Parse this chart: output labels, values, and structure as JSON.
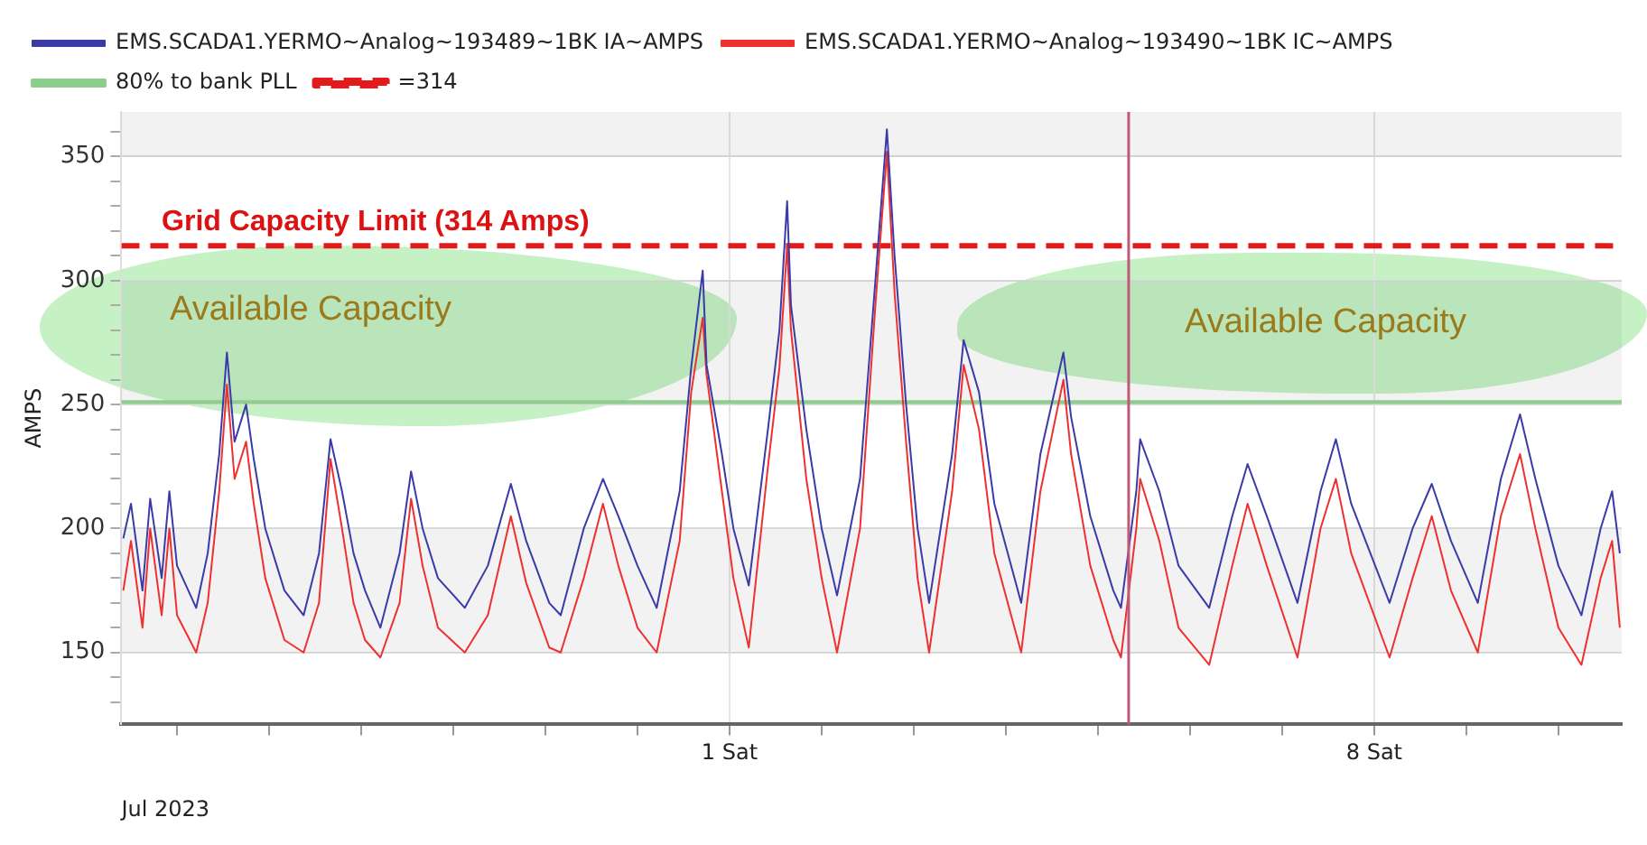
{
  "chart_data": {
    "type": "line",
    "x": [
      "2023-06-24T10:00",
      "2023-06-24T12:00",
      "2023-06-24T15:00",
      "2023-06-24T17:00",
      "2023-06-24T20:00",
      "2023-06-24T22:00",
      "2023-06-25T00:00",
      "2023-06-25T05:00",
      "2023-06-25T08:00",
      "2023-06-25T11:00",
      "2023-06-25T13:00",
      "2023-06-25T15:00",
      "2023-06-25T18:00",
      "2023-06-25T20:00",
      "2023-06-25T23:00",
      "2023-06-26T04:00",
      "2023-06-26T09:00",
      "2023-06-26T13:00",
      "2023-06-26T16:00",
      "2023-06-26T19:00",
      "2023-06-26T22:00",
      "2023-06-27T01:00",
      "2023-06-27T05:00",
      "2023-06-27T10:00",
      "2023-06-27T13:00",
      "2023-06-27T16:00",
      "2023-06-27T20:00",
      "2023-06-28T03:00",
      "2023-06-28T09:00",
      "2023-06-28T15:00",
      "2023-06-28T19:00",
      "2023-06-29T01:00",
      "2023-06-29T04:00",
      "2023-06-29T10:00",
      "2023-06-29T15:00",
      "2023-06-29T19:00",
      "2023-06-30T00:00",
      "2023-06-30T05:00",
      "2023-06-30T11:00",
      "2023-06-30T14:00",
      "2023-06-30T17:00",
      "2023-06-30T18:00",
      "2023-06-30T22:00",
      "2023-07-01T01:00",
      "2023-07-01T05:00",
      "2023-07-01T10:00",
      "2023-07-01T13:00",
      "2023-07-01T15:00",
      "2023-07-01T16:00",
      "2023-07-01T20:00",
      "2023-07-02T00:00",
      "2023-07-02T04:00",
      "2023-07-02T10:00",
      "2023-07-02T14:00",
      "2023-07-02T17:00",
      "2023-07-02T19:00",
      "2023-07-02T22:00",
      "2023-07-03T01:00",
      "2023-07-03T04:00",
      "2023-07-03T10:00",
      "2023-07-03T13:00",
      "2023-07-03T17:00",
      "2023-07-03T21:00",
      "2023-07-04T04:00",
      "2023-07-04T09:00",
      "2023-07-04T15:00",
      "2023-07-04T17:00",
      "2023-07-04T22:00",
      "2023-07-05T04:00",
      "2023-07-05T06:00",
      "2023-07-05T10:00",
      "2023-07-05T11:00",
      "2023-07-05T16:00",
      "2023-07-05T21:00",
      "2023-07-06T05:00",
      "2023-07-06T11:00",
      "2023-07-06T15:00",
      "2023-07-06T20:00",
      "2023-07-07T04:00",
      "2023-07-07T10:00",
      "2023-07-07T14:00",
      "2023-07-07T18:00",
      "2023-07-08T04:00",
      "2023-07-08T10:00",
      "2023-07-08T15:00",
      "2023-07-08T20:00",
      "2023-07-09T03:00",
      "2023-07-09T09:00",
      "2023-07-09T14:00",
      "2023-07-09T18:00",
      "2023-07-10T00:00",
      "2023-07-10T06:00",
      "2023-07-10T11:00",
      "2023-07-10T14:00",
      "2023-07-10T16:00"
    ],
    "series": [
      {
        "name": "EMS.SCADA1.YERMO~Analog~193489~1BK IA~AMPS",
        "color": "#3a3aa8",
        "values": [
          196,
          210,
          175,
          212,
          180,
          215,
          185,
          168,
          190,
          230,
          271,
          235,
          250,
          228,
          200,
          175,
          165,
          190,
          236,
          215,
          190,
          175,
          160,
          190,
          223,
          200,
          180,
          168,
          185,
          218,
          195,
          170,
          165,
          200,
          220,
          205,
          185,
          168,
          215,
          265,
          304,
          266,
          230,
          200,
          177,
          240,
          280,
          332,
          290,
          240,
          200,
          173,
          220,
          300,
          361,
          310,
          250,
          200,
          170,
          230,
          276,
          255,
          210,
          170,
          230,
          271,
          245,
          205,
          175,
          168,
          215,
          236,
          215,
          185,
          168,
          205,
          226,
          205,
          170,
          215,
          236,
          210,
          170,
          200,
          218,
          195,
          170,
          220,
          246,
          220,
          185,
          165,
          200,
          215,
          190
        ]
      },
      {
        "name": "EMS.SCADA1.YERMO~Analog~193490~1BK IC~AMPS",
        "color": "#ee3030",
        "values": [
          175,
          195,
          160,
          200,
          165,
          200,
          165,
          150,
          170,
          215,
          258,
          220,
          235,
          210,
          180,
          155,
          150,
          170,
          228,
          200,
          170,
          155,
          148,
          170,
          212,
          185,
          160,
          150,
          165,
          205,
          178,
          152,
          150,
          180,
          210,
          185,
          160,
          150,
          195,
          255,
          285,
          262,
          215,
          180,
          152,
          225,
          265,
          314,
          280,
          220,
          180,
          150,
          200,
          290,
          352,
          295,
          235,
          180,
          150,
          215,
          266,
          240,
          190,
          150,
          215,
          260,
          230,
          185,
          155,
          148,
          200,
          220,
          195,
          160,
          145,
          185,
          210,
          185,
          148,
          200,
          220,
          190,
          148,
          180,
          205,
          175,
          150,
          205,
          230,
          200,
          160,
          145,
          180,
          195,
          160
        ]
      },
      {
        "name": "80% to bank PLL",
        "color": "#8ccf8c",
        "x": [
          "2023-06-24T09:30",
          "2023-07-10T16:30"
        ],
        "values": [
          251,
          251
        ]
      },
      {
        "name": "=314",
        "color": "#e31a1c",
        "line_style": "dashed",
        "x": [
          "2023-06-24T09:30",
          "2023-07-10T16:30"
        ],
        "values": [
          314,
          314
        ]
      }
    ],
    "ref_lines": [
      {
        "axis": "x",
        "value": "2023-07-05T08:00",
        "color": "#c05878"
      }
    ],
    "annotations": [
      {
        "text": "Grid Capacity Limit (314 Amps)",
        "x": "2023-06-24T20:00",
        "y": 314
      },
      "Available Capacity",
      "Available Capacity"
    ],
    "xlabel": "Jul 2023",
    "ylabel": "AMPS",
    "xlim": [
      "2023-06-24T09:30",
      "2023-07-10T16:30"
    ],
    "xticks": [
      {
        "value": "2023-06-25T00:00",
        "label": null
      },
      {
        "value": "2023-06-26T00:00",
        "label": null
      },
      {
        "value": "2023-06-27T00:00",
        "label": null
      },
      {
        "value": "2023-06-28T00:00",
        "label": null
      },
      {
        "value": "2023-06-29T00:00",
        "label": null
      },
      {
        "value": "2023-06-30T00:00",
        "label": null
      },
      {
        "value": "2023-07-01T00:00",
        "label": "1 Sat"
      },
      {
        "value": "2023-07-02T00:00",
        "label": null
      },
      {
        "value": "2023-07-03T00:00",
        "label": null
      },
      {
        "value": "2023-07-04T00:00",
        "label": null
      },
      {
        "value": "2023-07-05T00:00",
        "label": null
      },
      {
        "value": "2023-07-06T00:00",
        "label": null
      },
      {
        "value": "2023-07-07T00:00",
        "label": null
      },
      {
        "value": "2023-07-08T00:00",
        "label": "8 Sat"
      },
      {
        "value": "2023-07-09T00:00",
        "label": null
      },
      {
        "value": "2023-07-10T00:00",
        "label": null
      }
    ],
    "ylim": [
      121,
      368
    ],
    "yticks": [
      {
        "value": 130,
        "label": null
      },
      {
        "value": 140,
        "label": null
      },
      150,
      {
        "value": 160,
        "label": null
      },
      {
        "value": 170,
        "label": null
      },
      {
        "value": 180,
        "label": null
      },
      {
        "value": 190,
        "label": null
      },
      200,
      {
        "value": 210,
        "label": null
      },
      {
        "value": 220,
        "label": null
      },
      {
        "value": 230,
        "label": null
      },
      {
        "value": 240,
        "label": null
      },
      250,
      {
        "value": 260,
        "label": null
      },
      {
        "value": 270,
        "label": null
      },
      {
        "value": 280,
        "label": null
      },
      {
        "value": 290,
        "label": null
      },
      300,
      {
        "value": 310,
        "label": null
      },
      {
        "value": 320,
        "label": null
      },
      {
        "value": 330,
        "label": null
      },
      {
        "value": 340,
        "label": null
      },
      350,
      {
        "value": 360,
        "label": null
      }
    ],
    "grid": true,
    "legend": "top left",
    "marker": "none",
    "line_style": "solid"
  }
}
